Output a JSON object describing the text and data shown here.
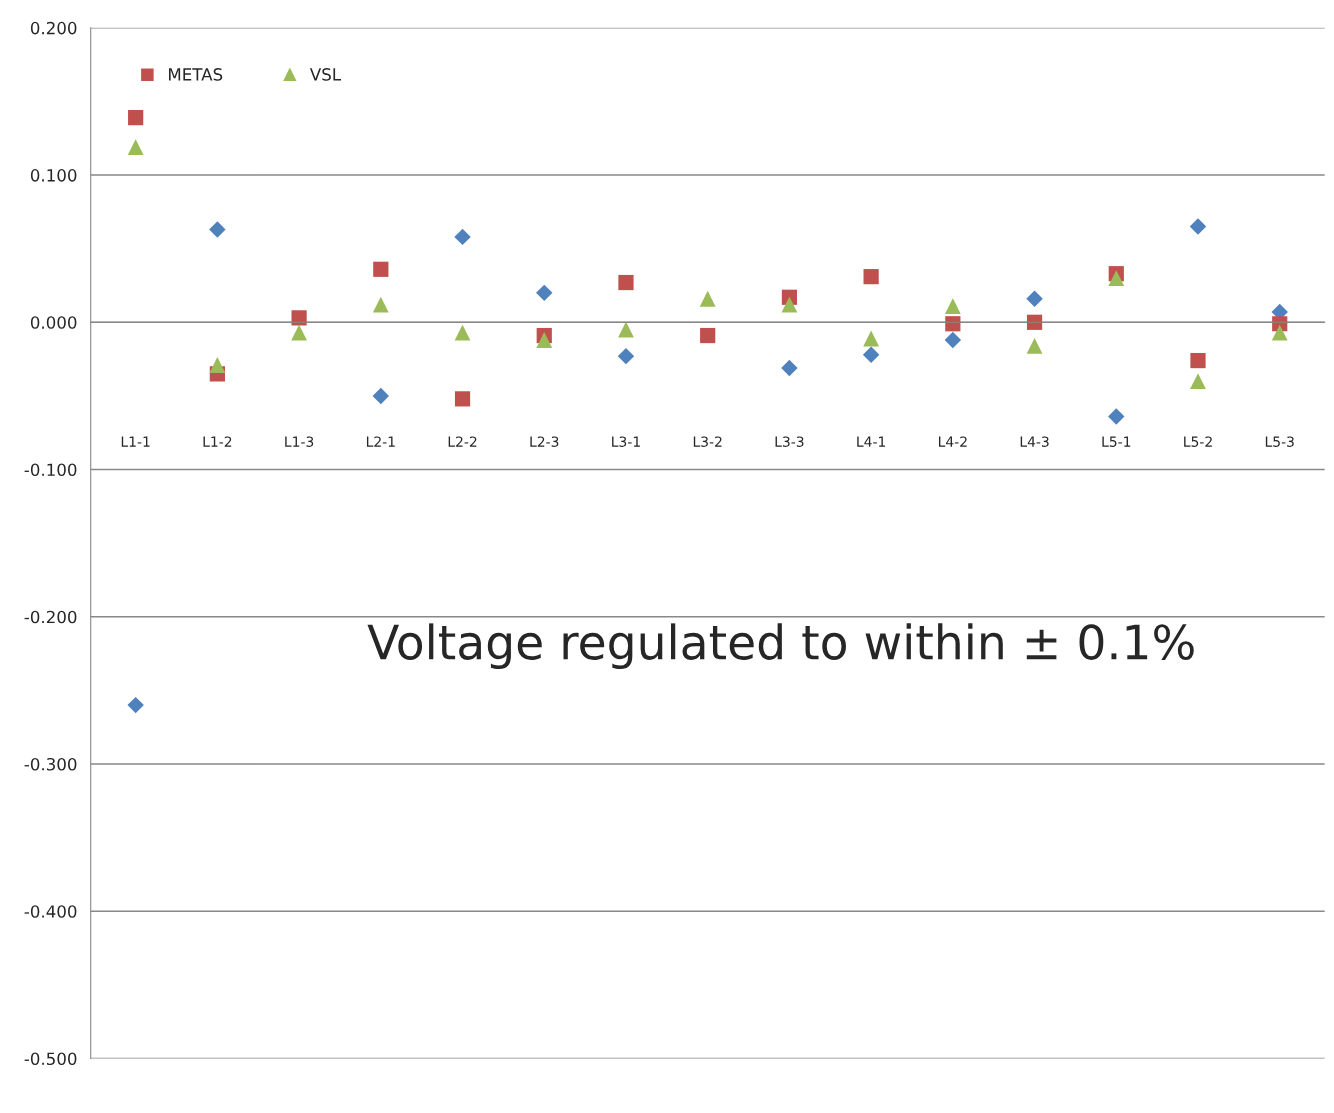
{
  "chart_data": {
    "type": "scatter",
    "categories": [
      "L1-1",
      "L1-2",
      "L1-3",
      "L2-1",
      "L2-2",
      "L2-3",
      "L3-1",
      "L3-2",
      "L3-3",
      "L4-1",
      "L4-2",
      "L4-3",
      "L5-1",
      "L5-2",
      "L5-3"
    ],
    "series": [
      {
        "color": "#4f81bd",
        "marker": "diamond",
        "values": [
          -0.26,
          0.063,
          null,
          -0.05,
          0.058,
          0.02,
          -0.023,
          null,
          -0.031,
          -0.022,
          -0.012,
          0.016,
          -0.064,
          0.065,
          0.007
        ]
      },
      {
        "name": "METAS",
        "color": "#c0504d",
        "marker": "square",
        "values": [
          0.139,
          -0.035,
          0.003,
          0.036,
          -0.052,
          -0.009,
          0.027,
          -0.009,
          0.017,
          0.031,
          -0.001,
          0.0,
          0.033,
          -0.026,
          -0.001
        ]
      },
      {
        "name": "VSL",
        "color": "#9bbb59",
        "marker": "triangle",
        "values": [
          0.119,
          -0.029,
          -0.007,
          0.012,
          -0.007,
          -0.012,
          -0.005,
          0.016,
          0.012,
          -0.011,
          0.011,
          -0.016,
          0.03,
          -0.04,
          -0.007
        ]
      }
    ],
    "ylim": [
      -0.5,
      0.2
    ],
    "yticks": [
      {
        "value": 0.2,
        "label": "0.200"
      },
      {
        "value": 0.1,
        "label": "0.100"
      },
      {
        "value": 0,
        "label": "0.000"
      },
      {
        "value": -0.1,
        "label": "-0.100"
      },
      {
        "value": -0.2,
        "label": "-0.200"
      },
      {
        "value": -0.3,
        "label": "-0.300"
      },
      {
        "value": -0.4,
        "label": "-0.400"
      },
      {
        "value": -0.5,
        "label": "-0.500"
      }
    ],
    "grid": "y",
    "legend": "top left",
    "annotations": [
      "Voltage regulated to within ± 0.1%"
    ]
  }
}
